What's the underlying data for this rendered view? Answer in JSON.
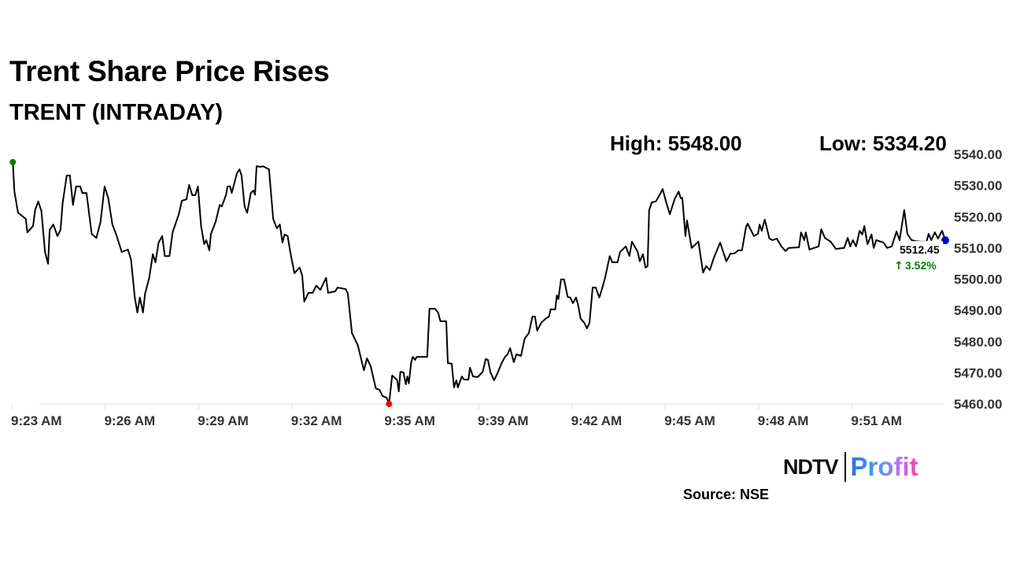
{
  "header": {
    "title": "Trent Share Price Rises",
    "subtitle": "TRENT (INTRADAY)",
    "high_label": "High: 5548.00",
    "low_label": "Low: 5334.20"
  },
  "footer": {
    "source": "Source: NSE",
    "logo_text": "NDTV | Profit"
  },
  "chart_data": {
    "type": "line",
    "title": "",
    "xlabel": "",
    "ylabel": "",
    "ylim": [
      5460,
      5540
    ],
    "y_ticks": [
      "5460.00",
      "5470.00",
      "5480.00",
      "5490.00",
      "5500.00",
      "5510.00",
      "5520.00",
      "5530.00",
      "5540.00"
    ],
    "x_ticks": [
      "9:23 AM",
      "9:26 AM",
      "9:29 AM",
      "9:32 AM",
      "9:35 AM",
      "9:39 AM",
      "9:42 AM",
      "9:45 AM",
      "9:48 AM",
      "9:51 AM"
    ],
    "grid": false,
    "y_axis_position": "right",
    "line_color": "#000000",
    "markers": {
      "start_color": "#008000",
      "low_color": "#ff0000",
      "last_color": "#0000cc"
    },
    "last_price": "5512.45",
    "change": "3.52%",
    "change_icon": "arrow-up-icon",
    "change_color": "#008000",
    "points": [
      [
        "9:23:02",
        5537.5
      ],
      [
        "9:23:05",
        5528.1
      ],
      [
        "9:23:12",
        5521.3
      ],
      [
        "9:23:27",
        5519.3
      ],
      [
        "9:23:30",
        5515.0
      ],
      [
        "9:23:41",
        5517.0
      ],
      [
        "9:23:45",
        5522.1
      ],
      [
        "9:23:51",
        5524.9
      ],
      [
        "9:23:57",
        5521.8
      ],
      [
        "9:24:04",
        5508.7
      ],
      [
        "9:24:10",
        5504.9
      ],
      [
        "9:24:13",
        5515.8
      ],
      [
        "9:24:20",
        5517.5
      ],
      [
        "9:24:28",
        5513.8
      ],
      [
        "9:24:34",
        5515.8
      ],
      [
        "9:24:38",
        5524.4
      ],
      [
        "9:24:46",
        5533.2
      ],
      [
        "9:24:52",
        5533.2
      ],
      [
        "9:24:58",
        5523.8
      ],
      [
        "9:25:04",
        5529.7
      ],
      [
        "9:25:12",
        5529.7
      ],
      [
        "9:25:16",
        5527.6
      ],
      [
        "9:25:24",
        5527.6
      ],
      [
        "9:25:34",
        5514.5
      ],
      [
        "9:25:43",
        5513.2
      ],
      [
        "9:25:51",
        5518.3
      ],
      [
        "9:25:59",
        5529.7
      ],
      [
        "9:26:06",
        5525.9
      ],
      [
        "9:26:14",
        5517.5
      ],
      [
        "9:26:21",
        5514.5
      ],
      [
        "9:26:32",
        5508.7
      ],
      [
        "9:26:44",
        5509.5
      ],
      [
        "9:26:50",
        5506.2
      ],
      [
        "9:26:57",
        5494.3
      ],
      [
        "9:27:02",
        5489.3
      ],
      [
        "9:27:07",
        5494.1
      ],
      [
        "9:27:13",
        5489.3
      ],
      [
        "9:27:17",
        5495.3
      ],
      [
        "9:27:25",
        5500.4
      ],
      [
        "9:27:32",
        5508.0
      ],
      [
        "9:27:37",
        5505.4
      ],
      [
        "9:27:43",
        5511.7
      ],
      [
        "9:27:50",
        5513.8
      ],
      [
        "9:27:55",
        5507.4
      ],
      [
        "9:28:04",
        5507.4
      ],
      [
        "9:28:10",
        5515.0
      ],
      [
        "9:28:22",
        5520.8
      ],
      [
        "9:28:28",
        5525.1
      ],
      [
        "9:28:37",
        5525.6
      ],
      [
        "9:28:42",
        5530.2
      ],
      [
        "9:28:48",
        5526.9
      ],
      [
        "9:28:54",
        5526.9
      ],
      [
        "9:28:59",
        5529.7
      ],
      [
        "9:29:05",
        5517.0
      ],
      [
        "9:29:11",
        5511.2
      ],
      [
        "9:29:15",
        5512.5
      ],
      [
        "9:29:21",
        5509.2
      ],
      [
        "9:29:24",
        5514.5
      ],
      [
        "9:29:33",
        5518.3
      ],
      [
        "9:29:41",
        5523.8
      ],
      [
        "9:29:45",
        5523.3
      ],
      [
        "9:29:53",
        5526.9
      ],
      [
        "9:29:56",
        5529.7
      ],
      [
        "9:30:01",
        5529.7
      ],
      [
        "9:30:04",
        5527.6
      ],
      [
        "9:30:14",
        5533.9
      ],
      [
        "9:30:19",
        5535.2
      ],
      [
        "9:30:23",
        5533.2
      ],
      [
        "9:30:29",
        5523.3
      ],
      [
        "9:30:34",
        5521.3
      ],
      [
        "9:30:41",
        5527.6
      ],
      [
        "9:30:46",
        5528.4
      ],
      [
        "9:30:49",
        5527.1
      ],
      [
        "9:30:52",
        5536.2
      ],
      [
        "9:31:00",
        5536.0
      ],
      [
        "9:31:04",
        5536.2
      ],
      [
        "9:31:16",
        5535.2
      ],
      [
        "9:31:24",
        5519.3
      ],
      [
        "9:31:31",
        5516.3
      ],
      [
        "9:31:37",
        5517.5
      ],
      [
        "9:31:42",
        5511.7
      ],
      [
        "9:31:46",
        5514.3
      ],
      [
        "9:31:52",
        5513.8
      ],
      [
        "9:31:57",
        5508.7
      ],
      [
        "9:32:05",
        5501.9
      ],
      [
        "9:32:15",
        5503.7
      ],
      [
        "9:32:20",
        5501.1
      ],
      [
        "9:32:24",
        5492.8
      ],
      [
        "9:32:32",
        5495.6
      ],
      [
        "9:32:40",
        5495.6
      ],
      [
        "9:32:47",
        5497.9
      ],
      [
        "9:32:55",
        5496.6
      ],
      [
        "9:33:06",
        5500.4
      ],
      [
        "9:33:10",
        5495.6
      ],
      [
        "9:33:24",
        5496.1
      ],
      [
        "9:33:28",
        5497.3
      ],
      [
        "9:33:44",
        5496.8
      ],
      [
        "9:33:48",
        5495.3
      ],
      [
        "9:33:56",
        5482.7
      ],
      [
        "9:34:07",
        5478.9
      ],
      [
        "9:34:19",
        5470.8
      ],
      [
        "9:34:25",
        5474.6
      ],
      [
        "9:34:32",
        5472.1
      ],
      [
        "9:34:42",
        5465.0
      ],
      [
        "9:34:49",
        5464.5
      ],
      [
        "9:34:55",
        5462.5
      ],
      [
        "9:35:04",
        5462.0
      ],
      [
        "9:35:10",
        5460.0
      ],
      [
        "9:35:18",
        5469.1
      ],
      [
        "9:35:31",
        5467.6
      ],
      [
        "9:35:35",
        5464.0
      ],
      [
        "9:35:39",
        5470.3
      ],
      [
        "9:35:47",
        5470.1
      ],
      [
        "9:35:53",
        5466.3
      ],
      [
        "9:35:57",
        5468.8
      ],
      [
        "9:36:01",
        5466.6
      ],
      [
        "9:36:07",
        5473.4
      ],
      [
        "9:36:11",
        5475.1
      ],
      [
        "9:36:17",
        5474.1
      ],
      [
        "9:36:21",
        5475.1
      ],
      [
        "9:36:48",
        5475.1
      ],
      [
        "9:36:54",
        5490.5
      ],
      [
        "9:37:08",
        5490.5
      ],
      [
        "9:37:16",
        5489.3
      ],
      [
        "9:37:22",
        5486.5
      ],
      [
        "9:37:37",
        5486.5
      ],
      [
        "9:37:41",
        5473.1
      ],
      [
        "9:37:51",
        5472.9
      ],
      [
        "9:37:57",
        5465.3
      ],
      [
        "9:38:03",
        5467.6
      ],
      [
        "9:38:07",
        5465.3
      ],
      [
        "9:38:17",
        5468.8
      ],
      [
        "9:38:23",
        5467.8
      ],
      [
        "9:38:34",
        5467.8
      ],
      [
        "9:38:38",
        5471.6
      ],
      [
        "9:38:46",
        5468.8
      ],
      [
        "9:38:58",
        5468.6
      ],
      [
        "9:39:08",
        5470.3
      ],
      [
        "9:39:14",
        5474.4
      ],
      [
        "9:39:18",
        5474.1
      ],
      [
        "9:39:23",
        5470.1
      ],
      [
        "9:39:30",
        5467.6
      ],
      [
        "9:39:36",
        5469.6
      ],
      [
        "9:39:44",
        5472.9
      ],
      [
        "9:39:51",
        5475.1
      ],
      [
        "9:39:56",
        5475.9
      ],
      [
        "9:40:01",
        5477.9
      ],
      [
        "9:40:08",
        5473.4
      ],
      [
        "9:40:13",
        5475.9
      ],
      [
        "9:40:22",
        5475.4
      ],
      [
        "9:40:29",
        5480.9
      ],
      [
        "9:40:37",
        5482.7
      ],
      [
        "9:40:44",
        5488.0
      ],
      [
        "9:40:49",
        5488.0
      ],
      [
        "9:40:53",
        5483.5
      ],
      [
        "9:41:01",
        5486.0
      ],
      [
        "9:41:09",
        5487.3
      ],
      [
        "9:41:16",
        5488.0
      ],
      [
        "9:41:19",
        5490.3
      ],
      [
        "9:41:28",
        5490.3
      ],
      [
        "9:41:31",
        5494.8
      ],
      [
        "9:41:34",
        5493.6
      ],
      [
        "9:41:39",
        5499.9
      ],
      [
        "9:41:45",
        5499.9
      ],
      [
        "9:41:52",
        5494.3
      ],
      [
        "9:41:57",
        5494.1
      ],
      [
        "9:42:02",
        5492.3
      ],
      [
        "9:42:08",
        5494.1
      ],
      [
        "9:42:12",
        5491.8
      ],
      [
        "9:42:17",
        5487.3
      ],
      [
        "9:42:24",
        5486.0
      ],
      [
        "9:42:29",
        5484.2
      ],
      [
        "9:42:34",
        5486.0
      ],
      [
        "9:42:40",
        5497.3
      ],
      [
        "9:42:46",
        5497.3
      ],
      [
        "9:42:53",
        5494.1
      ],
      [
        "9:42:58",
        5496.8
      ],
      [
        "9:43:04",
        5500.4
      ],
      [
        "9:43:13",
        5507.4
      ],
      [
        "9:43:18",
        5505.4
      ],
      [
        "9:43:28",
        5505.4
      ],
      [
        "9:43:33",
        5508.7
      ],
      [
        "9:43:44",
        5510.5
      ],
      [
        "9:43:51",
        5507.4
      ],
      [
        "9:43:56",
        5512.0
      ],
      [
        "9:44:07",
        5508.7
      ],
      [
        "9:44:11",
        5505.7
      ],
      [
        "9:44:17",
        5508.0
      ],
      [
        "9:44:22",
        5503.7
      ],
      [
        "9:44:26",
        5504.2
      ],
      [
        "9:44:29",
        5522.1
      ],
      [
        "9:44:34",
        5524.6
      ],
      [
        "9:44:42",
        5524.9
      ],
      [
        "9:44:49",
        5526.9
      ],
      [
        "9:44:55",
        5528.9
      ],
      [
        "9:45:02",
        5524.6
      ],
      [
        "9:45:09",
        5520.8
      ],
      [
        "9:45:18",
        5525.6
      ],
      [
        "9:45:26",
        5528.1
      ],
      [
        "9:45:30",
        5525.9
      ],
      [
        "9:45:33",
        5526.1
      ],
      [
        "9:45:39",
        5513.8
      ],
      [
        "9:45:42",
        5518.8
      ],
      [
        "9:45:51",
        5510.0
      ],
      [
        "9:46:04",
        5512.0
      ],
      [
        "9:46:13",
        5502.1
      ],
      [
        "9:46:19",
        5504.2
      ],
      [
        "9:46:26",
        5502.9
      ],
      [
        "9:46:34",
        5506.9
      ],
      [
        "9:46:46",
        5511.7
      ],
      [
        "9:46:58",
        5505.7
      ],
      [
        "9:47:06",
        5508.2
      ],
      [
        "9:47:13",
        5508.2
      ],
      [
        "9:47:21",
        5509.2
      ],
      [
        "9:47:28",
        5509.2
      ],
      [
        "9:47:36",
        5516.8
      ],
      [
        "9:47:39",
        5517.8
      ],
      [
        "9:47:51",
        5513.8
      ],
      [
        "9:47:59",
        5514.5
      ],
      [
        "9:48:02",
        5517.5
      ],
      [
        "9:48:06",
        5515.5
      ],
      [
        "9:48:12",
        5519.1
      ],
      [
        "9:48:21",
        5513.0
      ],
      [
        "9:48:27",
        5512.5
      ],
      [
        "9:48:35",
        5513.0
      ],
      [
        "9:48:44",
        5510.5
      ],
      [
        "9:48:52",
        5509.0
      ],
      [
        "9:48:58",
        5510.0
      ],
      [
        "9:49:18",
        5510.2
      ],
      [
        "9:49:22",
        5515.0
      ],
      [
        "9:49:28",
        5512.5
      ],
      [
        "9:49:31",
        5515.0
      ],
      [
        "9:49:38",
        5509.5
      ],
      [
        "9:49:56",
        5510.5
      ],
      [
        "9:50:01",
        5516.0
      ],
      [
        "9:50:08",
        5513.2
      ],
      [
        "9:50:19",
        5512.0
      ],
      [
        "9:50:29",
        5509.7
      ],
      [
        "9:50:45",
        5510.0
      ],
      [
        "9:50:52",
        5513.2
      ],
      [
        "9:50:57",
        5510.5
      ],
      [
        "9:51:02",
        5512.5
      ],
      [
        "9:51:08",
        5510.5
      ],
      [
        "9:51:15",
        5515.5
      ],
      [
        "9:51:20",
        5514.3
      ],
      [
        "9:51:24",
        5517.0
      ],
      [
        "9:51:30",
        5511.2
      ],
      [
        "9:51:38",
        5514.3
      ],
      [
        "9:51:42",
        5510.0
      ],
      [
        "9:51:47",
        5512.5
      ],
      [
        "9:52:01",
        5511.7
      ],
      [
        "9:52:08",
        5510.0
      ],
      [
        "9:52:17",
        5510.5
      ],
      [
        "9:52:26",
        5515.3
      ],
      [
        "9:52:32",
        5512.5
      ],
      [
        "9:52:41",
        5522.1
      ],
      [
        "9:52:47",
        5514.5
      ],
      [
        "9:52:55",
        5512.5
      ],
      [
        "9:53:03",
        5512.2
      ],
      [
        "9:53:13",
        5512.0
      ],
      [
        "9:53:24",
        5512.0
      ],
      [
        "9:53:28",
        5514.5
      ],
      [
        "9:53:33",
        5512.5
      ],
      [
        "9:53:40",
        5515.0
      ],
      [
        "9:53:46",
        5513.0
      ],
      [
        "9:53:54",
        5515.5
      ],
      [
        "9:54:00",
        5512.45
      ]
    ]
  }
}
